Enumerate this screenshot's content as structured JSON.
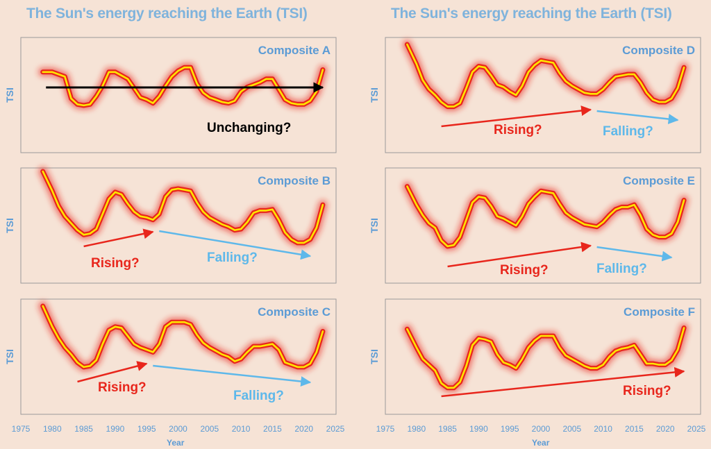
{
  "titles": {
    "left": "The Sun's energy reaching the Earth (TSI)",
    "right": "The Sun's energy reaching the Earth (TSI)"
  },
  "x_axis": {
    "label": "Year",
    "ticks": [
      1975,
      1980,
      1985,
      1990,
      1995,
      2000,
      2005,
      2010,
      2015,
      2020,
      2025
    ]
  },
  "colors": {
    "background": "#f6e3d6",
    "curve": "#ffe600",
    "glow": "#e8261c",
    "label_blue": "#5b9bd5",
    "arrow_red": "#e8261c",
    "arrow_blue": "#5eb8ea"
  },
  "chart_data": [
    {
      "type": "line",
      "title": "Composite A",
      "ylabel": "TSI",
      "x": [
        1978.5,
        1980,
        1982,
        1983,
        1984,
        1985,
        1986,
        1987,
        1988,
        1989,
        1990,
        1991,
        1992,
        1993,
        1994,
        1995,
        1996,
        1997,
        1998,
        1999,
        2000,
        2001,
        2002,
        2003,
        2004,
        2005,
        2006,
        2007,
        2008,
        2009,
        2010,
        2011,
        2012,
        2013,
        2014,
        2015,
        2016,
        2017,
        2018,
        2019,
        2020,
        2021,
        2022,
        2023
      ],
      "y": [
        0.7,
        0.7,
        0.66,
        0.47,
        0.42,
        0.41,
        0.42,
        0.49,
        0.58,
        0.7,
        0.7,
        0.67,
        0.64,
        0.56,
        0.48,
        0.46,
        0.43,
        0.49,
        0.58,
        0.66,
        0.71,
        0.74,
        0.74,
        0.6,
        0.52,
        0.48,
        0.46,
        0.44,
        0.43,
        0.45,
        0.53,
        0.57,
        0.59,
        0.61,
        0.64,
        0.64,
        0.55,
        0.46,
        0.43,
        0.42,
        0.42,
        0.45,
        0.53,
        0.72
      ],
      "ylim": [
        0,
        1
      ],
      "annotations": [
        {
          "text": "Unchanging?",
          "color": "black",
          "arrow_from": 1979,
          "arrow_to": 2023
        }
      ]
    },
    {
      "type": "line",
      "title": "Composite B",
      "ylabel": "TSI",
      "x": [
        1978.5,
        1980,
        1981,
        1982,
        1983,
        1984,
        1985,
        1986,
        1987,
        1988,
        1989,
        1990,
        1991,
        1992,
        1993,
        1994,
        1995,
        1996,
        1997,
        1998,
        1999,
        2000,
        2001,
        2002,
        2003,
        2004,
        2005,
        2006,
        2007,
        2008,
        2009,
        2010,
        2011,
        2012,
        2013,
        2014,
        2015,
        2016,
        2017,
        2018,
        2019,
        2020,
        2021,
        2022,
        2023
      ],
      "y": [
        0.97,
        0.8,
        0.67,
        0.58,
        0.52,
        0.46,
        0.42,
        0.43,
        0.47,
        0.6,
        0.73,
        0.79,
        0.77,
        0.69,
        0.62,
        0.58,
        0.57,
        0.55,
        0.6,
        0.75,
        0.81,
        0.82,
        0.81,
        0.8,
        0.7,
        0.62,
        0.57,
        0.54,
        0.51,
        0.49,
        0.46,
        0.47,
        0.53,
        0.61,
        0.63,
        0.63,
        0.64,
        0.55,
        0.44,
        0.38,
        0.35,
        0.35,
        0.38,
        0.48,
        0.68
      ],
      "ylim": [
        0,
        1
      ],
      "annotations": [
        {
          "text": "Rising?",
          "color": "red",
          "arrow_from": 1985,
          "arrow_to": 1996
        },
        {
          "text": "Falling?",
          "color": "blue",
          "arrow_from": 1997,
          "arrow_to": 2021
        }
      ]
    },
    {
      "type": "line",
      "title": "Composite C",
      "ylabel": "TSI",
      "x": [
        1978.5,
        1980,
        1981,
        1982,
        1983,
        1984,
        1985,
        1986,
        1987,
        1988,
        1989,
        1990,
        1991,
        1992,
        1993,
        1994,
        1995,
        1996,
        1997,
        1998,
        1999,
        2000,
        2001,
        2002,
        2003,
        2004,
        2005,
        2006,
        2007,
        2008,
        2009,
        2010,
        2011,
        2012,
        2013,
        2014,
        2015,
        2016,
        2017,
        2018,
        2019,
        2020,
        2021,
        2022,
        2023
      ],
      "y": [
        0.94,
        0.76,
        0.66,
        0.58,
        0.52,
        0.45,
        0.41,
        0.42,
        0.47,
        0.61,
        0.73,
        0.76,
        0.75,
        0.68,
        0.61,
        0.58,
        0.56,
        0.54,
        0.61,
        0.76,
        0.8,
        0.8,
        0.8,
        0.78,
        0.69,
        0.62,
        0.58,
        0.55,
        0.52,
        0.5,
        0.46,
        0.48,
        0.54,
        0.59,
        0.59,
        0.6,
        0.61,
        0.56,
        0.45,
        0.43,
        0.41,
        0.41,
        0.44,
        0.54,
        0.72
      ],
      "ylim": [
        0,
        1
      ],
      "annotations": [
        {
          "text": "Rising?",
          "color": "red",
          "arrow_from": 1984,
          "arrow_to": 1995
        },
        {
          "text": "Falling?",
          "color": "blue",
          "arrow_from": 1996,
          "arrow_to": 2021
        }
      ]
    },
    {
      "type": "line",
      "title": "Composite D",
      "ylabel": "TSI",
      "x": [
        1978.5,
        1980,
        1981,
        1982,
        1983,
        1984,
        1985,
        1986,
        1987,
        1988,
        1989,
        1990,
        1991,
        1992,
        1993,
        1994,
        1995,
        1996,
        1997,
        1998,
        1999,
        2000,
        2001,
        2002,
        2003,
        2004,
        2005,
        2006,
        2007,
        2008,
        2009,
        2010,
        2011,
        2012,
        2013,
        2014,
        2015,
        2016,
        2017,
        2018,
        2019,
        2020,
        2021,
        2022,
        2023
      ],
      "y": [
        0.94,
        0.77,
        0.63,
        0.55,
        0.5,
        0.44,
        0.4,
        0.4,
        0.43,
        0.56,
        0.7,
        0.75,
        0.74,
        0.67,
        0.59,
        0.57,
        0.53,
        0.5,
        0.58,
        0.7,
        0.76,
        0.8,
        0.79,
        0.78,
        0.69,
        0.62,
        0.58,
        0.55,
        0.52,
        0.51,
        0.51,
        0.55,
        0.61,
        0.66,
        0.67,
        0.68,
        0.68,
        0.61,
        0.52,
        0.46,
        0.44,
        0.44,
        0.47,
        0.56,
        0.74
      ],
      "ylim": [
        0,
        1
      ],
      "annotations": [
        {
          "text": "Rising?",
          "color": "red",
          "arrow_from": 1984,
          "arrow_to": 2008
        },
        {
          "text": "Falling?",
          "color": "blue",
          "arrow_from": 2009,
          "arrow_to": 2022
        }
      ]
    },
    {
      "type": "line",
      "title": "Composite E",
      "ylabel": "TSI",
      "x": [
        1978.5,
        1980,
        1981,
        1982,
        1983,
        1984,
        1985,
        1986,
        1987,
        1988,
        1989,
        1990,
        1991,
        1992,
        1993,
        1994,
        1995,
        1996,
        1997,
        1998,
        1999,
        2000,
        2001,
        2002,
        2003,
        2004,
        2005,
        2006,
        2007,
        2008,
        2009,
        2010,
        2011,
        2012,
        2013,
        2014,
        2015,
        2016,
        2017,
        2018,
        2019,
        2020,
        2021,
        2022,
        2023
      ],
      "y": [
        0.84,
        0.68,
        0.59,
        0.52,
        0.48,
        0.37,
        0.32,
        0.33,
        0.4,
        0.55,
        0.7,
        0.75,
        0.74,
        0.67,
        0.58,
        0.56,
        0.53,
        0.5,
        0.58,
        0.69,
        0.75,
        0.8,
        0.79,
        0.78,
        0.69,
        0.61,
        0.57,
        0.54,
        0.51,
        0.5,
        0.49,
        0.53,
        0.59,
        0.64,
        0.66,
        0.66,
        0.68,
        0.59,
        0.47,
        0.42,
        0.4,
        0.4,
        0.43,
        0.53,
        0.72
      ],
      "ylim": [
        0,
        1
      ],
      "annotations": [
        {
          "text": "Rising?",
          "color": "red",
          "arrow_from": 1985,
          "arrow_to": 2008
        },
        {
          "text": "Falling?",
          "color": "blue",
          "arrow_from": 2009,
          "arrow_to": 2021
        }
      ]
    },
    {
      "type": "line",
      "title": "Composite F",
      "ylabel": "TSI",
      "x": [
        1978.5,
        1980,
        1981,
        1982,
        1983,
        1984,
        1985,
        1986,
        1987,
        1988,
        1989,
        1990,
        1991,
        1992,
        1993,
        1994,
        1995,
        1996,
        1997,
        1998,
        1999,
        2000,
        2001,
        2002,
        2003,
        2004,
        2005,
        2006,
        2007,
        2008,
        2009,
        2010,
        2011,
        2012,
        2013,
        2014,
        2015,
        2016,
        2017,
        2018,
        2019,
        2020,
        2021,
        2022,
        2023
      ],
      "y": [
        0.74,
        0.58,
        0.48,
        0.43,
        0.38,
        0.27,
        0.23,
        0.23,
        0.28,
        0.42,
        0.6,
        0.66,
        0.65,
        0.63,
        0.52,
        0.45,
        0.43,
        0.4,
        0.48,
        0.58,
        0.64,
        0.68,
        0.68,
        0.68,
        0.58,
        0.51,
        0.48,
        0.45,
        0.42,
        0.4,
        0.4,
        0.43,
        0.5,
        0.55,
        0.57,
        0.58,
        0.6,
        0.52,
        0.44,
        0.44,
        0.43,
        0.43,
        0.47,
        0.56,
        0.75
      ],
      "ylim": [
        0,
        1
      ],
      "annotations": [
        {
          "text": "Rising?",
          "color": "red",
          "arrow_from": 1984,
          "arrow_to": 2023
        }
      ]
    }
  ]
}
